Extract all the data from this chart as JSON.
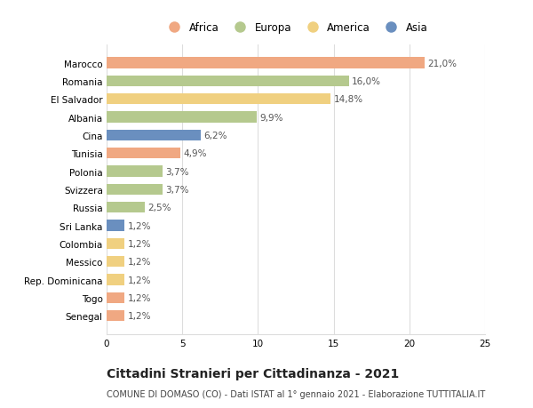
{
  "countries": [
    "Marocco",
    "Romania",
    "El Salvador",
    "Albania",
    "Cina",
    "Tunisia",
    "Polonia",
    "Svizzera",
    "Russia",
    "Sri Lanka",
    "Colombia",
    "Messico",
    "Rep. Dominicana",
    "Togo",
    "Senegal"
  ],
  "values": [
    21.0,
    16.0,
    14.8,
    9.9,
    6.2,
    4.9,
    3.7,
    3.7,
    2.5,
    1.2,
    1.2,
    1.2,
    1.2,
    1.2,
    1.2
  ],
  "labels": [
    "21,0%",
    "16,0%",
    "14,8%",
    "9,9%",
    "6,2%",
    "4,9%",
    "3,7%",
    "3,7%",
    "2,5%",
    "1,2%",
    "1,2%",
    "1,2%",
    "1,2%",
    "1,2%",
    "1,2%"
  ],
  "continents": [
    "Africa",
    "Europa",
    "America",
    "Europa",
    "Asia",
    "Africa",
    "Europa",
    "Europa",
    "Europa",
    "Asia",
    "America",
    "America",
    "America",
    "Africa",
    "Africa"
  ],
  "colors": {
    "Africa": "#F0A882",
    "Europa": "#B5C98E",
    "America": "#F0D080",
    "Asia": "#6A8FBF"
  },
  "legend_order": [
    "Africa",
    "Europa",
    "America",
    "Asia"
  ],
  "xlim": [
    0,
    25
  ],
  "xticks": [
    0,
    5,
    10,
    15,
    20,
    25
  ],
  "title": "Cittadini Stranieri per Cittadinanza - 2021",
  "subtitle": "COMUNE DI DOMASO (CO) - Dati ISTAT al 1° gennaio 2021 - Elaborazione TUTTITALIA.IT",
  "background_color": "#ffffff",
  "bar_height": 0.6,
  "label_fontsize": 7.5,
  "tick_fontsize": 7.5,
  "title_fontsize": 10,
  "subtitle_fontsize": 7,
  "grid_color": "#dddddd"
}
